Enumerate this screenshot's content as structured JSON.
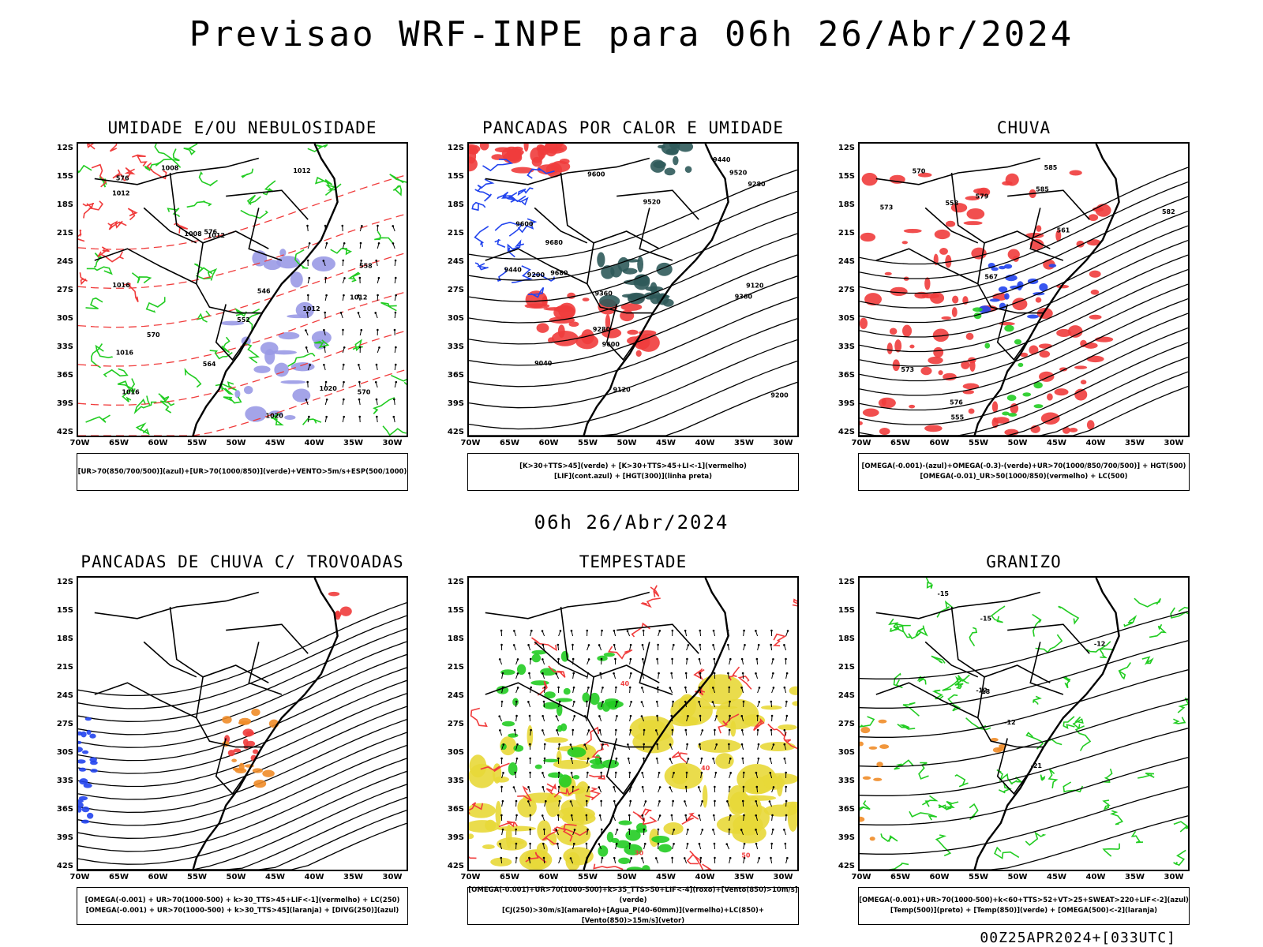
{
  "title": "Previsao WRF-INPE  para 06h 26/Abr/2024",
  "subtitle": "06h 26/Abr/2024",
  "footer": "00Z25APR2024+[033UTC]",
  "axes": {
    "lat": [
      "12S",
      "15S",
      "18S",
      "21S",
      "24S",
      "27S",
      "30S",
      "33S",
      "36S",
      "39S",
      "42S"
    ],
    "lon": [
      "70W",
      "65W",
      "60W",
      "55W",
      "50W",
      "45W",
      "40W",
      "35W",
      "30W"
    ]
  },
  "colors": {
    "red": "#f03c3c",
    "green": "#22cc22",
    "blue": "#2244ee",
    "lavender": "#9a9ae6",
    "yellow": "#e8d838",
    "orange": "#f08c28",
    "darkteal": "#2f5a5a",
    "black": "#000000"
  },
  "panels": [
    {
      "title": "UMIDADE E/OU NEBULOSIDADE",
      "legend": [
        "[UR>70(850/700/500)](azul)+[UR>70(1000/850)](verde)+VENTO>5m/s+ESP(500/1000)"
      ],
      "contour_labels": [
        "1012",
        "1012",
        "1016",
        "1008",
        "1012",
        "1020",
        "1016",
        "1012",
        "1008",
        "1020",
        "1012",
        "1016",
        "576",
        "570",
        "564",
        "558",
        "552",
        "546",
        "576",
        "570"
      ]
    },
    {
      "title": "PANCADAS POR CALOR E UMIDADE",
      "legend": [
        "[K>30+TTS>45](verde) + [K>30+TTS>45+LI<-1](vermelho)",
        "[LIF](cont.azul) + [HGT(300)](linha preta)"
      ],
      "contour_labels": [
        "9680",
        "9680",
        "9600",
        "9600",
        "9520",
        "9600",
        "9520",
        "9440",
        "9440",
        "9360",
        "9360",
        "9280",
        "9280",
        "9200",
        "9200",
        "9120",
        "9120",
        "9040"
      ]
    },
    {
      "title": "CHUVA",
      "legend": [
        "[OMEGA(-0.001)-(azul)+OMEGA(-0.3)-(verde)+UR>70(1000/850/700/500)] + HGT(500)",
        "[OMEGA(-0.01)_UR>50(1000/850)(vermelho) + LC(500)"
      ],
      "contour_labels": [
        "585",
        "585",
        "582",
        "579",
        "576",
        "573",
        "570",
        "567",
        "561",
        "558",
        "555",
        "573"
      ]
    },
    {
      "title": "PANCADAS DE CHUVA C/ TROVOADAS",
      "legend": [
        "[OMEGA(-0.001) + UR>70(1000-500) + k>30_TTS>45+LIF<-1](vermelho) + LC(250)",
        "[OMEGA(-0.001) + UR>70(1000-500) + k>30_TTS>45](laranja) + [DIVG(250)](azul)"
      ],
      "contour_labels": []
    },
    {
      "title": "TEMPESTADE",
      "legend": [
        "[OMEGA(-0.001)+UR>70(1000-500)+k>35_TTS>50+LIF<-4](roxo)+[Vento(850)>10m/s](verde)",
        "[CJ(250)>30m/s](amarelo)+[Agua_P(40-60mm)](vermelho)+LC(850)+[Vento(850)>15m/s](vetor)"
      ],
      "contour_labels": [
        "40",
        "50",
        "40",
        "30"
      ]
    },
    {
      "title": "GRANIZO",
      "legend": [
        "[OMEGA(-0.001)+UR>70(1000-500)+k<60+TTS>52+VT>25+SWEAT>220+LIF<-2](azul)",
        "[Temp(500)](preto) + [Temp(850)](verde) + [OMEGA(500)<-2](laranja)"
      ],
      "contour_labels": [
        "-12",
        "-12",
        "-15",
        "-15",
        "-18",
        "-21",
        "-12"
      ]
    }
  ]
}
